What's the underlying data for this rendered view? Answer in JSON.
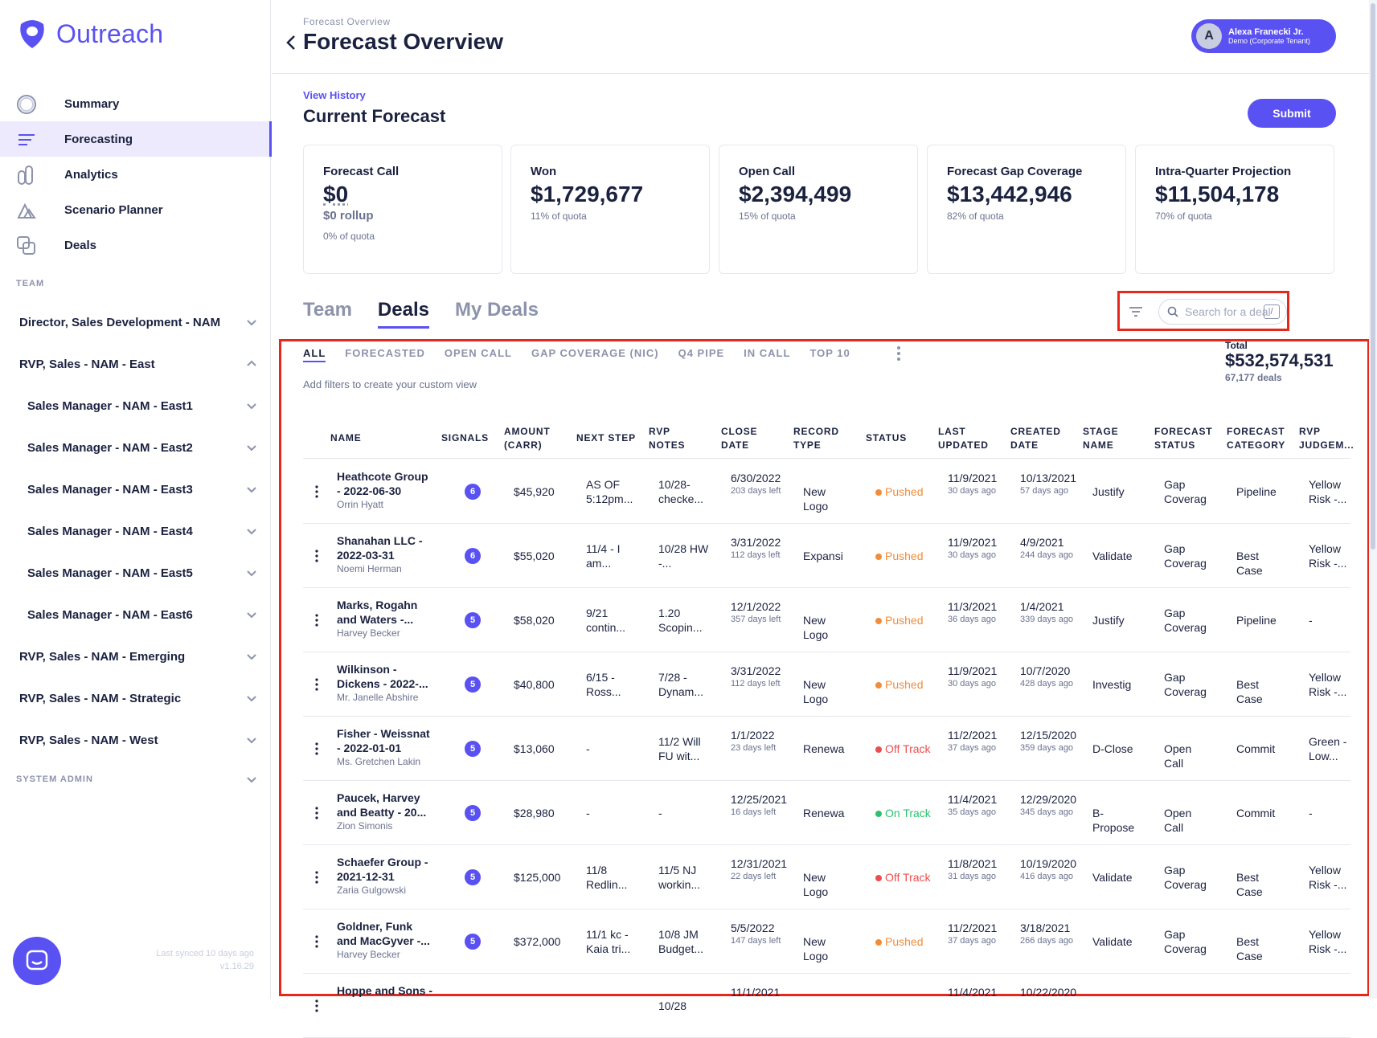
{
  "app": {
    "brand": "Outreach"
  },
  "colors": {
    "accent": "#5951f2",
    "highlight_box": "#e8271b",
    "pushed": "#f08c3a",
    "off_track": "#ea4e4e",
    "on_track": "#2fbf71"
  },
  "sidebar": {
    "nav": [
      {
        "label": "Summary",
        "icon": "summary-ring-icon"
      },
      {
        "label": "Forecasting",
        "icon": "forecasting-lines-icon",
        "active": true
      },
      {
        "label": "Analytics",
        "icon": "analytics-icon"
      },
      {
        "label": "Scenario Planner",
        "icon": "scenario-planner-icon"
      },
      {
        "label": "Deals",
        "icon": "deals-icon"
      }
    ],
    "team_label": "TEAM",
    "teams": [
      {
        "label": "Director, Sales Development - NAM",
        "expanded": false
      },
      {
        "label": "RVP, Sales - NAM - East",
        "expanded": true
      },
      {
        "label": "Sales Manager - NAM - East1"
      },
      {
        "label": "Sales Manager - NAM - East2"
      },
      {
        "label": "Sales Manager - NAM - East3"
      },
      {
        "label": "Sales Manager - NAM - East4"
      },
      {
        "label": "Sales Manager - NAM - East5"
      },
      {
        "label": "Sales Manager - NAM - East6"
      },
      {
        "label": "RVP, Sales - NAM - Emerging"
      },
      {
        "label": "RVP, Sales - NAM - Strategic"
      },
      {
        "label": "RVP, Sales - NAM - West"
      }
    ],
    "system_admin_label": "SYSTEM ADMIN",
    "last_synced": "Last synced 10 days ago",
    "version": "v1.16.29"
  },
  "header": {
    "breadcrumb": "Forecast Overview",
    "title": "Forecast Overview",
    "user": {
      "initial": "A",
      "name": "Alexa Franecki Jr.",
      "tenant": "Demo (Corporate Tenant)"
    }
  },
  "forecast": {
    "view_history": "View History",
    "title": "Current Forecast",
    "submit_label": "Submit",
    "cards": [
      {
        "title": "Forecast Call",
        "value": "$0",
        "rollup": "$0 rollup",
        "sub": "0% of quota"
      },
      {
        "title": "Won",
        "value": "$1,729,677",
        "sub": "11% of quota"
      },
      {
        "title": "Open Call",
        "value": "$2,394,499",
        "sub": "15% of quota"
      },
      {
        "title": "Forecast Gap Coverage",
        "value": "$13,442,946",
        "sub": "82% of quota"
      },
      {
        "title": "Intra-Quarter Projection",
        "value": "$11,504,178",
        "sub": "70% of quota"
      }
    ]
  },
  "tabs": [
    "Team",
    "Deals",
    "My Deals"
  ],
  "search": {
    "placeholder": "Search for a deal",
    "shortcut": "/"
  },
  "views": [
    "ALL",
    "FORECASTED",
    "OPEN CALL",
    "GAP COVERAGE (NIC)",
    "Q4 PIPE",
    "IN CALL",
    "TOP 10"
  ],
  "hint": "Add filters to create your custom view",
  "total": {
    "label": "Total",
    "value": "$532,574,531",
    "count": "67,177 deals"
  },
  "columns": [
    "NAME",
    "SIGNALS",
    "AMOUNT (CARR)",
    "NEXT STEP",
    "RVP NOTES",
    "CLOSE DATE",
    "RECORD TYPE",
    "STATUS",
    "LAST UPDATED",
    "CREATED DATE",
    "STAGE NAME",
    "FORECAST STATUS",
    "FORECAST CATEGORY",
    "RVP JUDGEM..."
  ],
  "rows": [
    {
      "name": "Heathcote Group - 2022-06-30",
      "owner": "Orrin Hyatt",
      "signals": "6",
      "amount": "$45,920",
      "next": "AS OF 5:12pm...",
      "notes": "10/28- checke...",
      "close": "6/30/2022",
      "close_sub": "203 days left",
      "record": "New Logo",
      "status": "Pushed",
      "status_color": "#f08c3a",
      "updated": "11/9/2021",
      "updated_sub": "30 days ago",
      "created": "10/13/2021",
      "created_sub": "57 days ago",
      "stage": "Justify",
      "fstatus": "Gap Coverag",
      "fcat": "Pipeline",
      "rvp": "Yellow Risk -..."
    },
    {
      "name": "Shanahan LLC - 2022-03-31",
      "owner": "Noemi Herman",
      "signals": "6",
      "amount": "$55,020",
      "next": "11/4 - I am...",
      "notes": "10/28 HW -...",
      "close": "3/31/2022",
      "close_sub": "112 days left",
      "record": "Expansi",
      "status": "Pushed",
      "status_color": "#f08c3a",
      "updated": "11/9/2021",
      "updated_sub": "30 days ago",
      "created": "4/9/2021",
      "created_sub": "244 days ago",
      "stage": "Validate",
      "fstatus": "Gap Coverag",
      "fcat": "Best Case",
      "rvp": "Yellow Risk -..."
    },
    {
      "name": "Marks, Rogahn and Waters -...",
      "owner": "Harvey Becker",
      "signals": "5",
      "amount": "$58,020",
      "next": "9/21 contin...",
      "notes": "1.20 Scopin...",
      "close": "12/1/2022",
      "close_sub": "357 days left",
      "record": "New Logo",
      "status": "Pushed",
      "status_color": "#f08c3a",
      "updated": "11/3/2021",
      "updated_sub": "36 days ago",
      "created": "1/4/2021",
      "created_sub": "339 days ago",
      "stage": "Justify",
      "fstatus": "Gap Coverag",
      "fcat": "Pipeline",
      "rvp": "-"
    },
    {
      "name": "Wilkinson - Dickens - 2022-...",
      "owner": "Mr. Janelle Abshire",
      "signals": "5",
      "amount": "$40,800",
      "next": "6/15 - Ross...",
      "notes": "7/28 - Dynam...",
      "close": "3/31/2022",
      "close_sub": "112 days left",
      "record": "New Logo",
      "status": "Pushed",
      "status_color": "#f08c3a",
      "updated": "11/9/2021",
      "updated_sub": "30 days ago",
      "created": "10/7/2020",
      "created_sub": "428 days ago",
      "stage": "Investig",
      "fstatus": "Gap Coverag",
      "fcat": "Best Case",
      "rvp": "Yellow Risk -..."
    },
    {
      "name": "Fisher - Weissnat - 2022-01-01",
      "owner": "Ms. Gretchen Lakin",
      "signals": "5",
      "amount": "$13,060",
      "next": "-",
      "notes": "11/2 Will FU wit...",
      "close": "1/1/2022",
      "close_sub": "23 days left",
      "record": "Renewa",
      "status": "Off Track",
      "status_color": "#ea4e4e",
      "updated": "11/2/2021",
      "updated_sub": "37 days ago",
      "created": "12/15/2020",
      "created_sub": "359 days ago",
      "stage": "D-Close",
      "fstatus": "Open Call",
      "fcat": "Commit",
      "rvp": "Green - Low..."
    },
    {
      "name": "Paucek, Harvey and Beatty - 20...",
      "owner": "Zion Simonis",
      "signals": "5",
      "amount": "$28,980",
      "next": "-",
      "notes": "-",
      "close": "12/25/2021",
      "close_sub": "16 days left",
      "record": "Renewa",
      "status": "On Track",
      "status_color": "#2fbf71",
      "updated": "11/4/2021",
      "updated_sub": "35 days ago",
      "created": "12/29/2020",
      "created_sub": "345 days ago",
      "stage": "B-Propose",
      "fstatus": "Open Call",
      "fcat": "Commit",
      "rvp": "-"
    },
    {
      "name": "Schaefer Group - 2021-12-31",
      "owner": "Zaria Gulgowski",
      "signals": "5",
      "amount": "$125,000",
      "next": "11/8 Redlin...",
      "notes": "11/5 NJ workin...",
      "close": "12/31/2021",
      "close_sub": "22 days left",
      "record": "New Logo",
      "status": "Off Track",
      "status_color": "#ea4e4e",
      "updated": "11/8/2021",
      "updated_sub": "31 days ago",
      "created": "10/19/2020",
      "created_sub": "416 days ago",
      "stage": "Validate",
      "fstatus": "Gap Coverag",
      "fcat": "Best Case",
      "rvp": "Yellow Risk -..."
    },
    {
      "name": "Goldner, Funk and MacGyver -...",
      "owner": "Harvey Becker",
      "signals": "5",
      "amount": "$372,000",
      "next": "11/1 kc - Kaia tri...",
      "notes": "10/8 JM Budget...",
      "close": "5/5/2022",
      "close_sub": "147 days left",
      "record": "New Logo",
      "status": "Pushed",
      "status_color": "#f08c3a",
      "updated": "11/2/2021",
      "updated_sub": "37 days ago",
      "created": "3/18/2021",
      "created_sub": "266 days ago",
      "stage": "Validate",
      "fstatus": "Gap Coverag",
      "fcat": "Best Case",
      "rvp": "Yellow Risk -..."
    },
    {
      "name": "Hoppe and Sons -",
      "owner": "",
      "signals": "",
      "amount": "",
      "next": "",
      "notes": "10/28",
      "close": "11/1/2021",
      "close_sub": "",
      "record": "",
      "status": "",
      "status_color": "#f08c3a",
      "updated": "11/4/2021",
      "updated_sub": "",
      "created": "10/22/2020",
      "created_sub": "",
      "stage": "",
      "fstatus": "",
      "fcat": "",
      "rvp": ""
    }
  ]
}
